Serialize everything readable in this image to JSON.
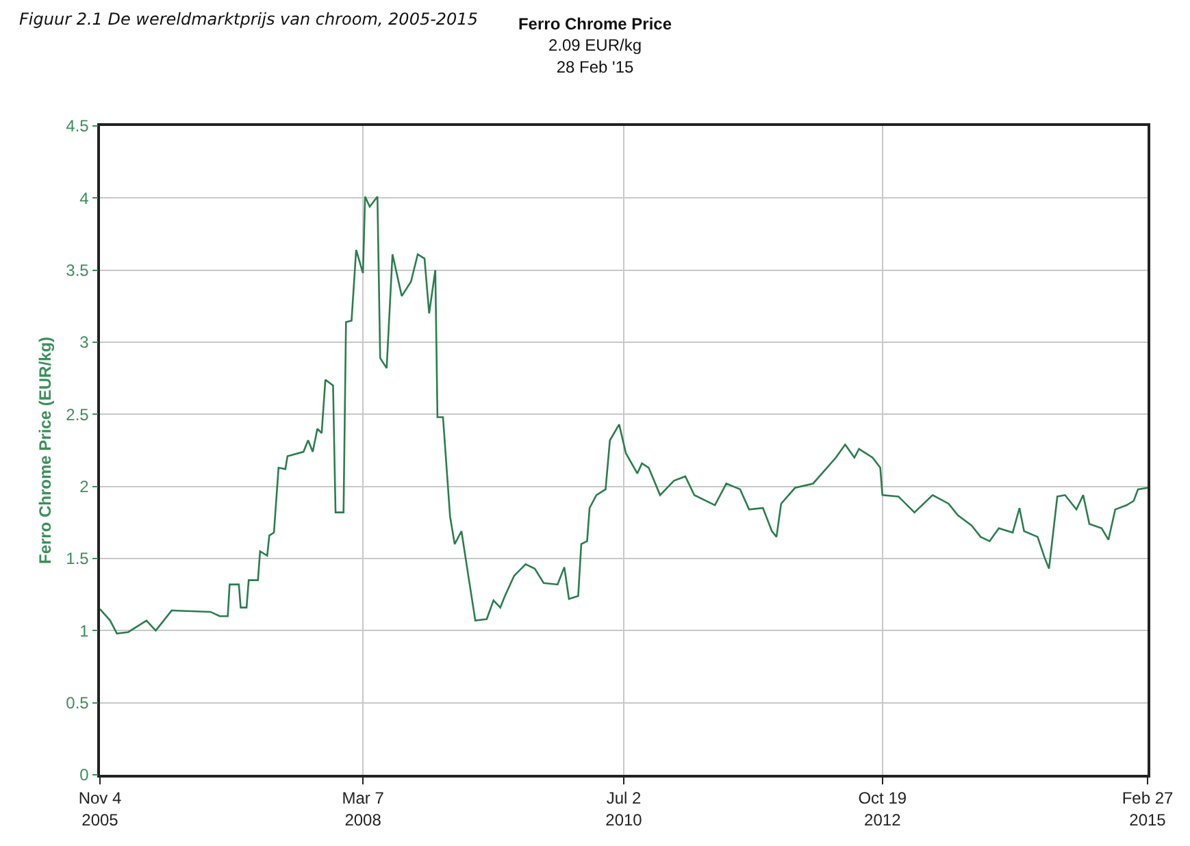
{
  "chart_data": {
    "type": "line",
    "title": "Ferro Chrome Price",
    "subtitle": "2.09 EUR/kg\n28 Feb '15",
    "ylabel": "Ferro Chrome Price (EUR/kg)",
    "annotations": [
      "Figuur 2.1 De wereldmarktprijs van chroom, 2005-2015"
    ],
    "x": [
      "2005-11-04",
      "2005-12-07",
      "2005-12-29",
      "2006-02-04",
      "2006-04-04",
      "2006-05-04",
      "2006-06-25",
      "2006-10-29",
      "2006-11-28",
      "2006-12-24",
      "2006-12-30",
      "2007-01-29",
      "2007-02-04",
      "2007-02-23",
      "2007-03-02",
      "2007-04-01",
      "2007-04-08",
      "2007-05-01",
      "2007-05-08",
      "2007-05-23",
      "2007-06-07",
      "2007-06-29",
      "2007-07-06",
      "2007-08-27",
      "2007-09-11",
      "2007-09-26",
      "2007-10-11",
      "2007-10-25",
      "2007-11-06",
      "2007-12-01",
      "2007-12-09",
      "2008-01-04",
      "2008-01-12",
      "2008-01-30",
      "2008-02-14",
      "2008-03-07",
      "2008-03-14",
      "2008-03-29",
      "2008-04-23",
      "2008-05-02",
      "2008-05-23",
      "2008-06-11",
      "2008-07-11",
      "2008-08-10",
      "2008-09-01",
      "2008-09-23",
      "2008-10-08",
      "2008-10-28",
      "2008-11-04",
      "2008-11-22",
      "2008-12-15",
      "2008-12-30",
      "2009-01-21",
      "2009-02-13",
      "2009-03-07",
      "2009-04-13",
      "2009-05-05",
      "2009-05-27",
      "2009-06-11",
      "2009-07-11",
      "2009-08-17",
      "2009-09-16",
      "2009-10-15",
      "2009-11-29",
      "2009-12-21",
      "2010-01-05",
      "2010-02-04",
      "2010-02-14",
      "2010-03-05",
      "2010-03-13",
      "2010-04-04",
      "2010-05-04",
      "2010-05-18",
      "2010-06-17",
      "2010-07-09",
      "2010-08-15",
      "2010-08-30",
      "2010-09-21",
      "2010-10-28",
      "2010-12-12",
      "2011-01-18",
      "2011-02-16",
      "2011-04-24",
      "2011-05-31",
      "2011-07-15",
      "2011-08-13",
      "2011-09-27",
      "2011-10-26",
      "2011-11-10",
      "2011-11-25",
      "2012-01-09",
      "2012-03-08",
      "2012-04-22",
      "2012-05-21",
      "2012-06-20",
      "2012-07-20",
      "2012-08-04",
      "2012-09-17",
      "2012-10-12",
      "2012-10-19",
      "2012-12-10",
      "2013-01-31",
      "2013-03-31",
      "2013-05-22",
      "2013-06-21",
      "2013-08-04",
      "2013-09-03",
      "2013-10-02",
      "2013-11-01",
      "2013-12-16",
      "2014-01-07",
      "2014-01-22",
      "2014-03-07",
      "2014-03-29",
      "2014-04-13",
      "2014-05-10",
      "2014-06-04",
      "2014-07-11",
      "2014-08-02",
      "2014-08-22",
      "2014-10-01",
      "2014-10-23",
      "2014-11-14",
      "2014-12-21",
      "2015-01-13",
      "2015-01-27",
      "2015-02-27"
    ],
    "series": [
      {
        "color": "#2a7d4f",
        "values": [
          1.15,
          1.07,
          0.98,
          0.99,
          1.07,
          1.0,
          1.14,
          1.13,
          1.1,
          1.1,
          1.32,
          1.32,
          1.16,
          1.16,
          1.35,
          1.35,
          1.55,
          1.52,
          1.66,
          1.68,
          2.13,
          2.12,
          2.21,
          2.24,
          2.32,
          2.24,
          2.4,
          2.37,
          2.74,
          2.7,
          1.82,
          1.82,
          3.14,
          3.15,
          3.64,
          3.48,
          4.01,
          3.94,
          4.01,
          2.89,
          2.82,
          3.61,
          3.32,
          3.42,
          3.61,
          3.58,
          3.2,
          3.5,
          2.48,
          2.48,
          1.79,
          1.6,
          1.69,
          1.37,
          1.07,
          1.08,
          1.21,
          1.16,
          1.24,
          1.38,
          1.46,
          1.43,
          1.33,
          1.32,
          1.44,
          1.22,
          1.24,
          1.6,
          1.62,
          1.85,
          1.94,
          1.98,
          2.32,
          2.43,
          2.23,
          2.09,
          2.16,
          2.13,
          1.94,
          2.04,
          2.07,
          1.94,
          1.87,
          2.02,
          1.98,
          1.84,
          1.85,
          1.69,
          1.65,
          1.88,
          1.99,
          2.02,
          2.13,
          2.2,
          2.29,
          2.2,
          2.26,
          2.2,
          2.13,
          1.94,
          1.93,
          1.82,
          1.94,
          1.88,
          1.8,
          1.73,
          1.65,
          1.62,
          1.71,
          1.68,
          1.85,
          1.69,
          1.65,
          1.51,
          1.43,
          1.93,
          1.94,
          1.84,
          1.94,
          1.74,
          1.71,
          1.63,
          1.84,
          1.87,
          1.9,
          1.98,
          1.99
        ]
      }
    ],
    "xlim": [
      "2005-11-04",
      "2015-02-27"
    ],
    "xticks": [
      {
        "value": "2005-11-04",
        "label": "Nov 4\n2005"
      },
      {
        "value": "2008-03-07",
        "label": "Mar 7\n2008"
      },
      {
        "value": "2010-07-02",
        "label": "Jul 2\n2010"
      },
      {
        "value": "2012-10-19",
        "label": "Oct 19\n2012"
      },
      {
        "value": "2015-02-27",
        "label": "Feb 27\n2015"
      }
    ],
    "ylim": [
      0,
      4.5
    ],
    "yticks": [
      0,
      0.5,
      1,
      1.5,
      2,
      2.5,
      3,
      3.5,
      4,
      4.5
    ],
    "grid": true,
    "marker": "none",
    "line_style": "solid"
  }
}
